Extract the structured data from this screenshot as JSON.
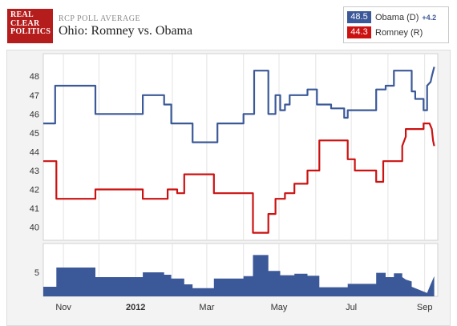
{
  "header": {
    "logo_lines": [
      "REAL",
      "CLEAR",
      "POLITICS"
    ],
    "kicker": "RCP POLL AVERAGE",
    "title": "Ohio: Romney vs. Obama"
  },
  "legend": [
    {
      "value": "48.5",
      "label": "Obama (D)",
      "change": "+4.2",
      "color": "#3b5998"
    },
    {
      "value": "44.3",
      "label": "Romney (R)",
      "change": "",
      "color": "#cc1111"
    }
  ],
  "chart_data": [
    {
      "type": "line",
      "title": "Ohio: Romney vs. Obama",
      "x_ticks": [
        "Nov",
        "2012",
        "Mar",
        "May",
        "Jul",
        "Sep"
      ],
      "y_ticks": [
        40,
        41,
        42,
        43,
        44,
        45,
        46,
        47,
        48
      ],
      "ylim": [
        39.3,
        49.2
      ],
      "xlim": [
        "2011-10-15",
        "2012-09-12"
      ],
      "grid": "vertical",
      "series": [
        {
          "name": "Obama (D)",
          "color": "#3b5998",
          "points": [
            [
              "2011-10-15",
              45.5
            ],
            [
              "2011-10-25",
              45.5
            ],
            [
              "2011-10-25",
              47.5
            ],
            [
              "2011-11-28",
              47.5
            ],
            [
              "2011-11-28",
              46.0
            ],
            [
              "2012-01-07",
              46.0
            ],
            [
              "2012-01-07",
              47.0
            ],
            [
              "2012-01-25",
              47.0
            ],
            [
              "2012-01-25",
              46.5
            ],
            [
              "2012-01-31",
              46.5
            ],
            [
              "2012-01-31",
              45.5
            ],
            [
              "2012-02-18",
              45.5
            ],
            [
              "2012-02-18",
              44.5
            ],
            [
              "2012-03-10",
              44.5
            ],
            [
              "2012-03-10",
              45.5
            ],
            [
              "2012-04-01",
              45.5
            ],
            [
              "2012-04-01",
              46.0
            ],
            [
              "2012-04-10",
              46.0
            ],
            [
              "2012-04-10",
              48.3
            ],
            [
              "2012-04-22",
              48.3
            ],
            [
              "2012-04-22",
              46.0
            ],
            [
              "2012-04-28",
              46.0
            ],
            [
              "2012-04-28",
              47.0
            ],
            [
              "2012-05-02",
              47.0
            ],
            [
              "2012-05-02",
              46.2
            ],
            [
              "2012-05-06",
              46.2
            ],
            [
              "2012-05-06",
              46.5
            ],
            [
              "2012-05-10",
              46.5
            ],
            [
              "2012-05-10",
              47.0
            ],
            [
              "2012-05-25",
              47.0
            ],
            [
              "2012-05-25",
              47.3
            ],
            [
              "2012-06-02",
              47.3
            ],
            [
              "2012-06-02",
              46.5
            ],
            [
              "2012-06-14",
              46.5
            ],
            [
              "2012-06-14",
              46.3
            ],
            [
              "2012-06-25",
              46.3
            ],
            [
              "2012-06-25",
              45.8
            ],
            [
              "2012-06-28",
              45.8
            ],
            [
              "2012-06-28",
              46.2
            ],
            [
              "2012-07-22",
              46.2
            ],
            [
              "2012-07-22",
              47.3
            ],
            [
              "2012-07-30",
              47.3
            ],
            [
              "2012-07-30",
              47.5
            ],
            [
              "2012-08-06",
              47.5
            ],
            [
              "2012-08-06",
              48.3
            ],
            [
              "2012-08-21",
              48.3
            ],
            [
              "2012-08-21",
              47.2
            ],
            [
              "2012-08-24",
              47.2
            ],
            [
              "2012-08-24",
              46.8
            ],
            [
              "2012-08-31",
              46.8
            ],
            [
              "2012-08-31",
              46.2
            ],
            [
              "2012-09-03",
              46.2
            ],
            [
              "2012-09-03",
              47.5
            ],
            [
              "2012-09-06",
              47.7
            ],
            [
              "2012-09-07",
              48.0
            ],
            [
              "2012-09-09",
              48.5
            ]
          ]
        },
        {
          "name": "Romney (R)",
          "color": "#cc1111",
          "points": [
            [
              "2011-10-15",
              43.5
            ],
            [
              "2011-10-26",
              43.5
            ],
            [
              "2011-10-26",
              41.5
            ],
            [
              "2011-11-28",
              41.5
            ],
            [
              "2011-11-28",
              42.0
            ],
            [
              "2012-01-07",
              42.0
            ],
            [
              "2012-01-07",
              41.5
            ],
            [
              "2012-01-28",
              41.5
            ],
            [
              "2012-01-28",
              42.0
            ],
            [
              "2012-02-05",
              42.0
            ],
            [
              "2012-02-05",
              41.8
            ],
            [
              "2012-02-11",
              41.8
            ],
            [
              "2012-02-11",
              42.8
            ],
            [
              "2012-03-07",
              42.8
            ],
            [
              "2012-03-07",
              41.8
            ],
            [
              "2012-04-09",
              41.8
            ],
            [
              "2012-04-09",
              39.7
            ],
            [
              "2012-04-22",
              39.7
            ],
            [
              "2012-04-22",
              40.7
            ],
            [
              "2012-04-28",
              40.7
            ],
            [
              "2012-04-28",
              41.5
            ],
            [
              "2012-05-06",
              41.5
            ],
            [
              "2012-05-06",
              41.8
            ],
            [
              "2012-05-14",
              41.8
            ],
            [
              "2012-05-14",
              42.3
            ],
            [
              "2012-05-25",
              42.3
            ],
            [
              "2012-05-25",
              43.0
            ],
            [
              "2012-06-04",
              43.0
            ],
            [
              "2012-06-04",
              44.6
            ],
            [
              "2012-06-28",
              44.6
            ],
            [
              "2012-06-28",
              43.6
            ],
            [
              "2012-07-04",
              43.6
            ],
            [
              "2012-07-04",
              43.0
            ],
            [
              "2012-07-22",
              43.0
            ],
            [
              "2012-07-22",
              42.4
            ],
            [
              "2012-07-28",
              42.4
            ],
            [
              "2012-07-28",
              43.5
            ],
            [
              "2012-08-13",
              43.5
            ],
            [
              "2012-08-13",
              44.3
            ],
            [
              "2012-08-16",
              44.8
            ],
            [
              "2012-08-16",
              45.2
            ],
            [
              "2012-08-31",
              45.2
            ],
            [
              "2012-08-31",
              45.5
            ],
            [
              "2012-09-05",
              45.5
            ],
            [
              "2012-09-07",
              45.2
            ],
            [
              "2012-09-08",
              44.6
            ],
            [
              "2012-09-09",
              44.3
            ]
          ]
        }
      ]
    },
    {
      "type": "area",
      "title": "",
      "y_ticks": [
        5
      ],
      "ylim": [
        0,
        11
      ],
      "series": [
        {
          "name": "Obama (D) spread",
          "color": "#3b5998",
          "points": [
            [
              "2011-10-15",
              2.0
            ],
            [
              "2011-10-26",
              2.0
            ],
            [
              "2011-10-26",
              6.0
            ],
            [
              "2011-11-28",
              6.0
            ],
            [
              "2011-11-28",
              4.0
            ],
            [
              "2012-01-07",
              4.0
            ],
            [
              "2012-01-07",
              5.0
            ],
            [
              "2012-01-25",
              5.0
            ],
            [
              "2012-01-25",
              4.5
            ],
            [
              "2012-01-31",
              4.5
            ],
            [
              "2012-01-31",
              3.7
            ],
            [
              "2012-02-11",
              3.7
            ],
            [
              "2012-02-11",
              2.5
            ],
            [
              "2012-02-18",
              2.5
            ],
            [
              "2012-02-18",
              1.7
            ],
            [
              "2012-03-07",
              1.7
            ],
            [
              "2012-03-07",
              3.7
            ],
            [
              "2012-04-01",
              3.7
            ],
            [
              "2012-04-01",
              4.2
            ],
            [
              "2012-04-09",
              4.2
            ],
            [
              "2012-04-09",
              8.6
            ],
            [
              "2012-04-22",
              8.6
            ],
            [
              "2012-04-22",
              5.3
            ],
            [
              "2012-05-02",
              5.3
            ],
            [
              "2012-05-02",
              4.4
            ],
            [
              "2012-05-14",
              4.4
            ],
            [
              "2012-05-14",
              4.7
            ],
            [
              "2012-05-25",
              4.7
            ],
            [
              "2012-05-25",
              4.3
            ],
            [
              "2012-06-04",
              4.3
            ],
            [
              "2012-06-04",
              1.9
            ],
            [
              "2012-06-28",
              1.9
            ],
            [
              "2012-06-28",
              2.6
            ],
            [
              "2012-07-22",
              2.6
            ],
            [
              "2012-07-22",
              4.9
            ],
            [
              "2012-07-30",
              4.9
            ],
            [
              "2012-07-30",
              4.0
            ],
            [
              "2012-08-06",
              4.0
            ],
            [
              "2012-08-06",
              4.8
            ],
            [
              "2012-08-13",
              4.8
            ],
            [
              "2012-08-13",
              4.0
            ],
            [
              "2012-08-16",
              3.5
            ],
            [
              "2012-08-21",
              3.1
            ],
            [
              "2012-08-21",
              2.0
            ],
            [
              "2012-08-31",
              1.0
            ],
            [
              "2012-09-03",
              0.7
            ],
            [
              "2012-09-06",
              2.5
            ],
            [
              "2012-09-09",
              4.2
            ]
          ]
        }
      ]
    }
  ]
}
